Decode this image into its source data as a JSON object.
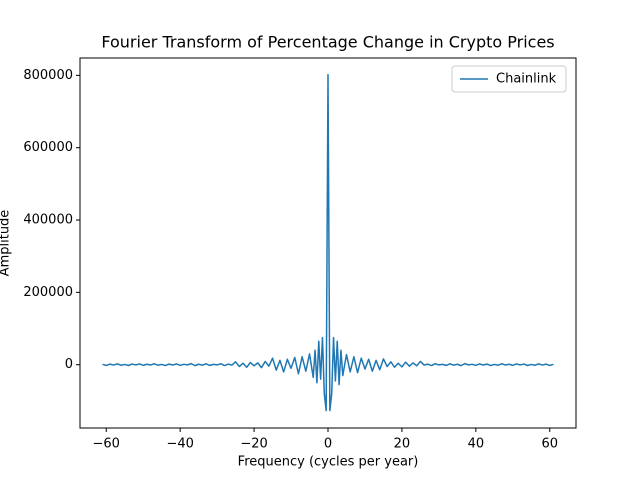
{
  "chart_data": {
    "type": "line",
    "title": "Fourier Transform of Percentage Change in Crypto Prices",
    "x_label": "Frequency (cycles per year)",
    "y_label": "Amplitude",
    "x": [
      -61,
      -60,
      -59,
      -58,
      -57,
      -56,
      -55,
      -54,
      -53,
      -52,
      -51,
      -50,
      -49,
      -48,
      -47,
      -46,
      -45,
      -44,
      -43,
      -42,
      -41,
      -40,
      -39,
      -38,
      -37,
      -36,
      -35,
      -34,
      -33,
      -32,
      -31,
      -30,
      -29,
      -28,
      -27,
      -26,
      -25,
      -24,
      -23,
      -22,
      -21,
      -20,
      -19,
      -18,
      -17,
      -16,
      -15,
      -14,
      -13,
      -12,
      -11,
      -10,
      -9,
      -8,
      -7,
      -6,
      -5,
      -4,
      -3.5,
      -3,
      -2.5,
      -2,
      -1.5,
      -1,
      -0.5,
      0,
      0.5,
      1,
      1.5,
      2,
      2.5,
      3,
      3.5,
      4,
      5,
      6,
      7,
      8,
      9,
      10,
      11,
      12,
      13,
      14,
      15,
      16,
      17,
      18,
      19,
      20,
      21,
      22,
      23,
      24,
      25,
      26,
      27,
      28,
      29,
      30,
      31,
      32,
      33,
      34,
      35,
      36,
      37,
      38,
      39,
      40,
      41,
      42,
      43,
      44,
      45,
      46,
      47,
      48,
      49,
      50,
      51,
      52,
      53,
      54,
      55,
      56,
      57,
      58,
      59,
      60,
      61
    ],
    "series": [
      {
        "name": "Chainlink",
        "color": "#1f77b4",
        "values": [
          1000,
          -2000,
          1500,
          -1000,
          2500,
          -1500,
          800,
          -2200,
          1800,
          -600,
          2000,
          -1800,
          1200,
          -900,
          2600,
          -1400,
          700,
          -2100,
          1600,
          -800,
          2200,
          -1700,
          1100,
          -500,
          3000,
          -2500,
          1300,
          -1200,
          2400,
          -1900,
          900,
          -600,
          2800,
          -2300,
          1500,
          -1000,
          8000,
          -5000,
          4000,
          -7000,
          6000,
          -3000,
          5000,
          -8000,
          9000,
          -4000,
          18000,
          -15000,
          12000,
          -20000,
          15000,
          -10000,
          20000,
          -25000,
          22000,
          -18000,
          30000,
          -35000,
          40000,
          -50000,
          65000,
          -40000,
          75000,
          -80000,
          -127000,
          802000,
          -127000,
          -80000,
          75000,
          -45000,
          65000,
          -55000,
          40000,
          -30000,
          28000,
          -20000,
          22000,
          -22000,
          18000,
          -12000,
          15000,
          -18000,
          12000,
          -14000,
          16000,
          -5000,
          8000,
          -7000,
          4000,
          -6000,
          7000,
          -4000,
          5000,
          -3000,
          9000,
          -1000,
          1500,
          -2300,
          2800,
          -600,
          900,
          -1900,
          2400,
          -1200,
          1300,
          -2500,
          3000,
          -500,
          1100,
          -1700,
          2200,
          -800,
          1600,
          -2100,
          700,
          -1400,
          2600,
          -900,
          1200,
          -1800,
          2000,
          -600,
          1800,
          -2200,
          800,
          -1500,
          2500,
          -1000,
          1500,
          -2000,
          1000
        ]
      }
    ],
    "xlim": [
      -67.1,
      67.1
    ],
    "ylim": [
      -175000,
      848000
    ],
    "xticks": [
      {
        "value": -60,
        "label": "−60"
      },
      {
        "value": -40,
        "label": "−40"
      },
      {
        "value": -20,
        "label": "−20"
      },
      0,
      20,
      40,
      60
    ],
    "yticks": [
      0,
      200000,
      400000,
      600000,
      800000
    ],
    "legend": "upper right"
  }
}
